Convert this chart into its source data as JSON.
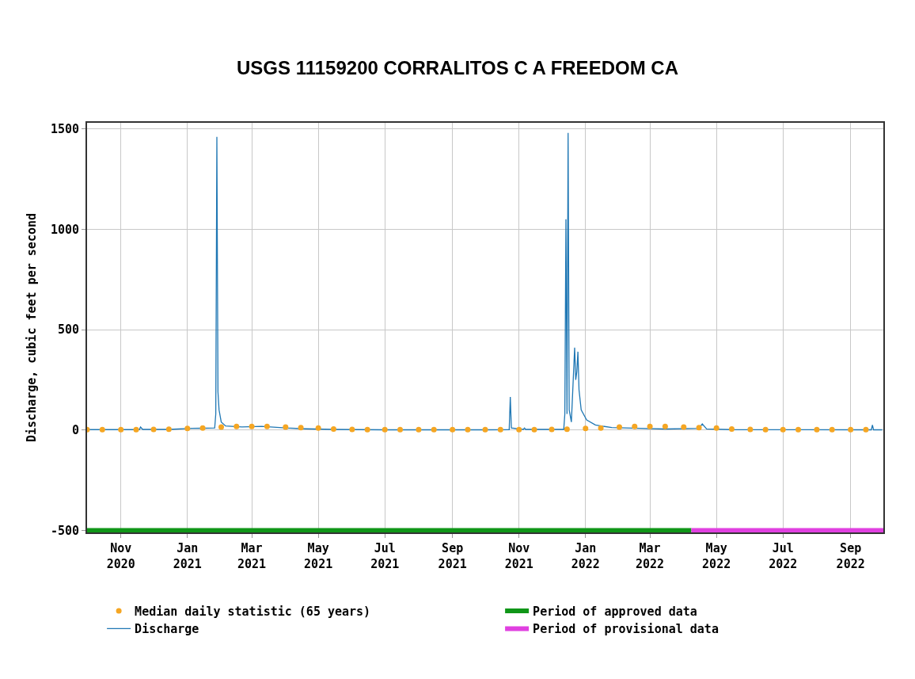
{
  "chart_data": {
    "type": "line",
    "title": "USGS 11159200 CORRALITOS C A FREEDOM CA",
    "ylabel": "Discharge, cubic feet per second",
    "xlim": [
      "2020-10-01",
      "2022-10-01"
    ],
    "ylim": [
      -510,
      1530
    ],
    "yticks": [
      -500,
      0,
      500,
      1000,
      1500
    ],
    "xticks": [
      {
        "value": "2020-11-01",
        "label": "Nov\n2020"
      },
      {
        "value": "2021-01-01",
        "label": "Jan\n2021"
      },
      {
        "value": "2021-03-01",
        "label": "Mar\n2021"
      },
      {
        "value": "2021-05-01",
        "label": "May\n2021"
      },
      {
        "value": "2021-07-01",
        "label": "Jul\n2021"
      },
      {
        "value": "2021-09-01",
        "label": "Sep\n2021"
      },
      {
        "value": "2021-11-01",
        "label": "Nov\n2021"
      },
      {
        "value": "2022-01-01",
        "label": "Jan\n2022"
      },
      {
        "value": "2022-03-01",
        "label": "Mar\n2022"
      },
      {
        "value": "2022-05-01",
        "label": "May\n2022"
      },
      {
        "value": "2022-07-01",
        "label": "Jul\n2022"
      },
      {
        "value": "2022-09-01",
        "label": "Sep\n2022"
      }
    ],
    "grid": true,
    "legend": "bottom",
    "series": [
      {
        "name": "Median daily statistic (65 years)",
        "type": "scatter",
        "marker": "circle",
        "color": "#f5a623",
        "x": [
          "2020-10-01",
          "2020-10-15",
          "2020-11-01",
          "2020-11-15",
          "2020-12-01",
          "2020-12-15",
          "2021-01-01",
          "2021-01-15",
          "2021-02-01",
          "2021-02-15",
          "2021-03-01",
          "2021-03-15",
          "2021-04-01",
          "2021-04-15",
          "2021-05-01",
          "2021-05-15",
          "2021-06-01",
          "2021-06-15",
          "2021-07-01",
          "2021-07-15",
          "2021-08-01",
          "2021-08-15",
          "2021-09-01",
          "2021-09-15",
          "2021-10-01",
          "2021-10-15",
          "2021-11-01",
          "2021-11-15",
          "2021-12-01",
          "2021-12-15",
          "2022-01-01",
          "2022-01-15",
          "2022-02-01",
          "2022-02-15",
          "2022-03-01",
          "2022-03-15",
          "2022-04-01",
          "2022-04-15",
          "2022-05-01",
          "2022-05-15",
          "2022-06-01",
          "2022-06-15",
          "2022-07-01",
          "2022-07-15",
          "2022-08-01",
          "2022-08-15",
          "2022-09-01",
          "2022-09-15"
        ],
        "values": [
          2,
          2,
          2,
          2,
          3,
          4,
          8,
          10,
          15,
          18,
          18,
          18,
          15,
          12,
          10,
          5,
          3,
          2,
          2,
          2,
          2,
          2,
          2,
          2,
          2,
          2,
          2,
          2,
          3,
          4,
          8,
          10,
          15,
          18,
          18,
          18,
          15,
          12,
          10,
          5,
          3,
          2,
          2,
          2,
          2,
          2,
          2,
          2
        ]
      },
      {
        "name": "Period of approved data",
        "type": "line",
        "color": "#109618",
        "x": [
          "2020-10-01",
          "2022-04-08"
        ],
        "values": [
          -500,
          -500
        ]
      },
      {
        "name": "Discharge",
        "color": "#1f77b4",
        "x": [
          "2020-10-01",
          "2020-11-18",
          "2020-11-19",
          "2020-11-21",
          "2020-12-15",
          "2021-01-05",
          "2021-01-26",
          "2021-01-27",
          "2021-01-28",
          "2021-01-29",
          "2021-01-30",
          "2021-02-01",
          "2021-02-05",
          "2021-02-20",
          "2021-03-10",
          "2021-04-01",
          "2021-04-20",
          "2021-05-15",
          "2021-07-01",
          "2021-09-30",
          "2021-10-23",
          "2021-10-24",
          "2021-10-25",
          "2021-11-05",
          "2021-11-06",
          "2021-11-07",
          "2021-12-12",
          "2021-12-13",
          "2021-12-14",
          "2021-12-15",
          "2021-12-16",
          "2021-12-17",
          "2021-12-19",
          "2021-12-22",
          "2021-12-23",
          "2021-12-24",
          "2021-12-25",
          "2021-12-26",
          "2021-12-28",
          "2022-01-02",
          "2022-01-10",
          "2022-01-25",
          "2022-02-20",
          "2022-03-15",
          "2022-04-15",
          "2022-04-18",
          "2022-04-22",
          "2022-05-15",
          "2022-09-20",
          "2022-09-21",
          "2022-09-22",
          "2022-09-30"
        ],
        "values": [
          2,
          2,
          15,
          3,
          3,
          8,
          10,
          80,
          1460,
          190,
          100,
          40,
          20,
          15,
          18,
          10,
          6,
          3,
          1,
          1,
          2,
          165,
          10,
          3,
          10,
          3,
          3,
          80,
          1050,
          80,
          1480,
          100,
          40,
          410,
          250,
          290,
          390,
          200,
          100,
          50,
          25,
          12,
          8,
          5,
          8,
          30,
          5,
          2,
          1,
          25,
          1,
          1
        ]
      },
      {
        "name": "Period of provisional data",
        "type": "line",
        "color": "#e040e0",
        "x": [
          "2022-04-08",
          "2022-10-01"
        ],
        "values": [
          -500,
          -500
        ]
      }
    ]
  }
}
